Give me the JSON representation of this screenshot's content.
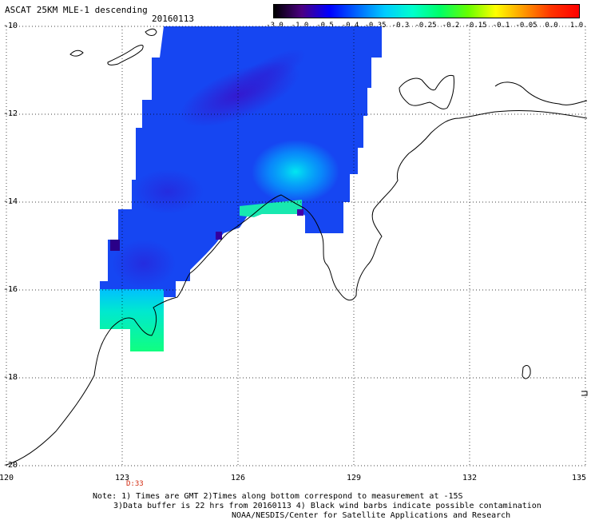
{
  "header": {
    "title": "ASCAT 25KM MLE-1 descending",
    "date": "20160113"
  },
  "colorbar": {
    "labels": [
      "-3.0",
      "-1.0",
      "-0.5",
      "-0.4",
      "-0.35",
      "-0.3",
      "-0.25",
      "-0.2",
      "-0.15",
      "-0.1",
      "-0.05",
      "0.0",
      "1.0"
    ],
    "colors": [
      "#000000",
      "#4b0082",
      "#0000ff",
      "#0066ff",
      "#00ccff",
      "#00ffcc",
      "#00ff66",
      "#66ff00",
      "#ffff00",
      "#ff9900",
      "#ff3300",
      "#ff0000"
    ]
  },
  "axes": {
    "lat_labels": [
      "-10",
      "-12",
      "-14",
      "-16",
      "-18",
      "-20"
    ],
    "lon_labels": [
      "120",
      "123",
      "126",
      "129",
      "132",
      "135"
    ]
  },
  "time_label": "D:33",
  "footer": {
    "line1": "Note: 1) Times are GMT 2)Times along bottom correspond to measurement at -15S",
    "line2": "3)Data buffer is 22 hrs from 20160113 4) Black wind barbs indicate possible contamination",
    "line3": "NOAA/NESDIS/Center for Satellite Applications and Research"
  }
}
